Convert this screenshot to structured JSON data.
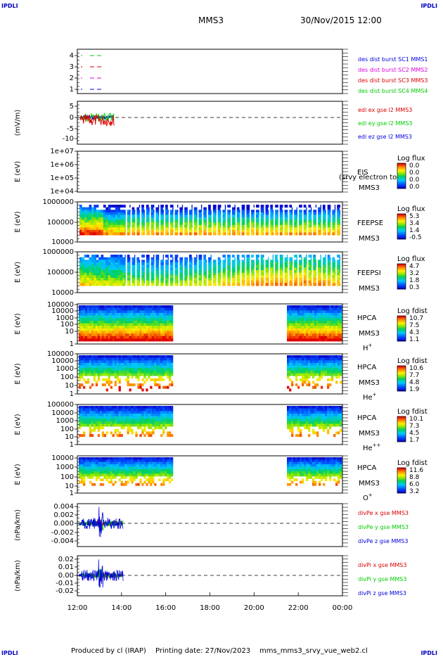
{
  "header": {
    "corner_left_top": "IPDLI",
    "corner_right_top": "IPDLI",
    "spacecraft": "MMS3",
    "datetime": "30/Nov/2015 12:00",
    "corner_left_bottom": "IPDLI",
    "corner_right_bottom": "IPDLI"
  },
  "footer": {
    "produced_by": "Produced by cl (IRAP)",
    "printing_date": "Printing date: 27/Nov/2023",
    "filename": "mms_mms3_srvy_vue_web2.cl"
  },
  "colors": {
    "mms1": "#0000dd",
    "mms2": "#dd00dd",
    "mms3": "#dd0000",
    "mms4": "#00cc00"
  },
  "chart_data": [
    {
      "type": "line",
      "panel": "burst",
      "yticks": [
        "4",
        "3",
        "2",
        "1"
      ],
      "legend": [
        {
          "label": "des dist burst SC1 MMS1",
          "color": "#0000dd"
        },
        {
          "label": "des dist burst SC2 MMS2",
          "color": "#dd00dd"
        },
        {
          "label": "des dist burst SC3 MMS3",
          "color": "#dd0000"
        },
        {
          "label": "des dist burst SC4 MMS4",
          "color": "#00cc00"
        }
      ]
    },
    {
      "type": "line",
      "panel": "edi",
      "ylabel": "(mV/m)",
      "yticks": [
        "5",
        "0",
        "-5",
        "-10"
      ],
      "ylim": [
        -10,
        7
      ],
      "legend": [
        {
          "label": "edi ex gse l2 MMS3",
          "color": "#dd0000"
        },
        {
          "label": "edi ey gse l2 MMS3",
          "color": "#00cc00"
        },
        {
          "label": "edi ez gse l2 MMS3",
          "color": "#0000dd"
        }
      ]
    },
    {
      "type": "heatmap",
      "panel": "eis",
      "ylabel": "E (eV)",
      "yticks": [
        "1e+07",
        "1e+06",
        "1e+05",
        "1e+04"
      ],
      "instrument": [
        "EIS",
        "MMS3"
      ],
      "overlap_label": "(srvy electron to",
      "colorbar_title": "Log flux",
      "colorbar_ticks": [
        "0.0",
        "0.0",
        "0.0",
        "0.0"
      ]
    },
    {
      "type": "heatmap",
      "panel": "feepse",
      "ylabel": "E (eV)",
      "yticks": [
        "1000000",
        "100000",
        "10000"
      ],
      "instrument": [
        "FEEPSE",
        "MMS3"
      ],
      "colorbar_title": "Log flux",
      "colorbar_ticks": [
        "5.3",
        "3.4",
        "1.4",
        "-0.5"
      ]
    },
    {
      "type": "heatmap",
      "panel": "feepsi",
      "ylabel": "E (eV)",
      "yticks": [
        "1000000",
        "100000",
        "10000"
      ],
      "instrument": [
        "FEEPSI",
        "MMS3"
      ],
      "colorbar_title": "Log flux",
      "colorbar_ticks": [
        "4.7",
        "3.2",
        "1.8",
        "0.3"
      ]
    },
    {
      "type": "heatmap",
      "panel": "hpca_h",
      "ylabel": "E (eV)",
      "yticks": [
        "100000",
        "10000",
        "1000",
        "100",
        "10",
        "1"
      ],
      "instrument": [
        "HPCA",
        "MMS3"
      ],
      "species": "H",
      "species_sup": "+",
      "colorbar_title": "Log fdist",
      "colorbar_ticks": [
        "10.7",
        "7.5",
        "4.3",
        "1.1"
      ]
    },
    {
      "type": "heatmap",
      "panel": "hpca_he",
      "ylabel": "E (eV)",
      "yticks": [
        "100000",
        "10000",
        "1000",
        "100",
        "10",
        "1"
      ],
      "instrument": [
        "HPCA",
        "MMS3"
      ],
      "species": "He",
      "species_sup": "+",
      "colorbar_title": "Log fdist",
      "colorbar_ticks": [
        "10.6",
        "7.7",
        "4.8",
        "1.9"
      ]
    },
    {
      "type": "heatmap",
      "panel": "hpca_hepp",
      "ylabel": "E (eV)",
      "yticks": [
        "100000",
        "10000",
        "1000",
        "100",
        "10",
        "1"
      ],
      "instrument": [
        "HPCA",
        "MMS3"
      ],
      "species": "He",
      "species_sup": "++",
      "colorbar_title": "Log fdist",
      "colorbar_ticks": [
        "10.1",
        "7.3",
        "4.5",
        "1.7"
      ]
    },
    {
      "type": "heatmap",
      "panel": "hpca_o",
      "ylabel": "E (eV)",
      "yticks": [
        "10000",
        "1000",
        "100",
        "10",
        "1"
      ],
      "instrument": [
        "HPCA",
        "MMS3"
      ],
      "species": "O",
      "species_sup": "+",
      "colorbar_title": "Log fdist",
      "colorbar_ticks": [
        "11.6",
        "8.8",
        "6.0",
        "3.2"
      ]
    },
    {
      "type": "line",
      "panel": "divpe",
      "ylabel": "(nPa/km)",
      "yticks": [
        "0.004",
        "0.002",
        "0.000",
        "-0.002",
        "-0.004"
      ],
      "ylim": [
        -0.005,
        0.005
      ],
      "legend": [
        {
          "label": "divPe x gse MMS3",
          "color": "#dd0000"
        },
        {
          "label": "divPe y gse MMS3",
          "color": "#00cc00"
        },
        {
          "label": "divPe z gse MMS3",
          "color": "#0000dd"
        }
      ]
    },
    {
      "type": "line",
      "panel": "divpi",
      "ylabel": "(nPa/km)",
      "yticks": [
        "0.02",
        "0.01",
        "0.00",
        "-0.01",
        "-0.02"
      ],
      "ylim": [
        -0.028,
        0.028
      ],
      "legend": [
        {
          "label": "divPi x gse MMS3",
          "color": "#dd0000"
        },
        {
          "label": "divPi y gse MMS3",
          "color": "#00cc00"
        },
        {
          "label": "divPi z gse MMS3",
          "color": "#0000dd"
        }
      ]
    }
  ],
  "x_axis": {
    "ticks": [
      "12:00",
      "14:00",
      "16:00",
      "18:00",
      "20:00",
      "22:00",
      "00:00"
    ]
  }
}
